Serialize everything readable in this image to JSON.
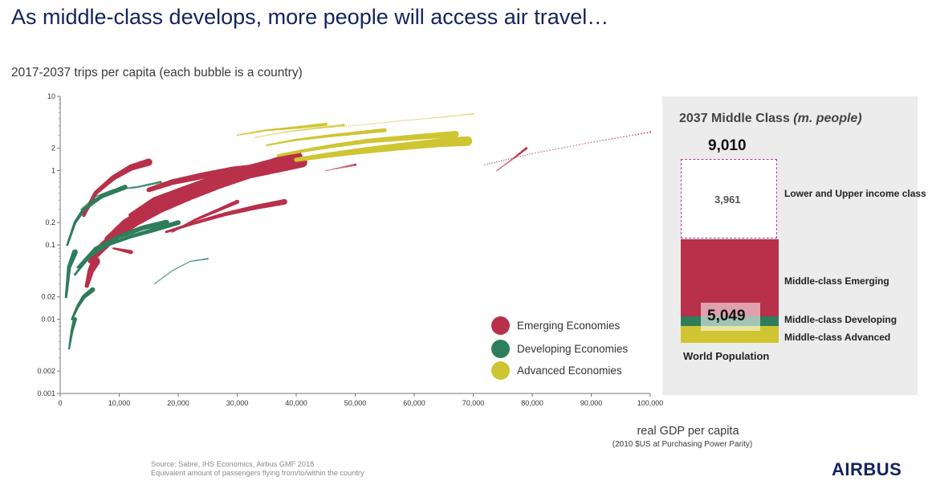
{
  "page": {
    "title": "As middle-class develops, more people will access air travel…",
    "source_line1": "Source: Sabre, IHS Economics, Airbus GMF 2018",
    "source_line2": "Equivalent amount of passengers flying from/to/within the country",
    "logo_text": "AIRBUS"
  },
  "chart_data": [
    {
      "type": "scatter",
      "title": "2017-2037 trips per capita (each bubble is a country)",
      "xlabel": "real GDP per capita",
      "xlabel_sub": "(2010 $US at Purchasing Power Parity)",
      "ylabel": "",
      "xlim": [
        0,
        100000
      ],
      "ylim": [
        0.001,
        10
      ],
      "yscale": "log",
      "x_ticks": [
        0,
        10000,
        20000,
        30000,
        40000,
        50000,
        60000,
        70000,
        80000,
        90000,
        100000
      ],
      "x_tick_labels": [
        "0",
        "10,000",
        "20,000",
        "30,000",
        "40,000",
        "50,000",
        "60,000",
        "70,000",
        "80,000",
        "90,000",
        "100,000"
      ],
      "y_ticks": [
        0.001,
        0.002,
        0.01,
        0.02,
        0.1,
        0.2,
        1,
        2,
        10
      ],
      "y_tick_labels": [
        "0.001",
        "0.002",
        "0.01",
        "0.02",
        "0.1",
        "0.2",
        "1",
        "2",
        "10"
      ],
      "grid": false,
      "legend_position": "bottom-right",
      "series": [
        {
          "name": "Emerging Economies",
          "color": "#b8304a",
          "trajectories": [
            {
              "x": [
                15000,
                19000,
                24000,
                29000,
                34000,
                37000,
                40000
              ],
              "y": [
                0.55,
                0.7,
                0.85,
                1.0,
                1.1,
                1.2,
                1.4
              ],
              "size": 13
            },
            {
              "x": [
                12000,
                16000,
                21000,
                26000,
                31000,
                36000
              ],
              "y": [
                0.25,
                0.4,
                0.55,
                0.75,
                0.95,
                1.2
              ],
              "size": 14
            },
            {
              "x": [
                10000,
                14000,
                18000,
                23000,
                28000,
                33000,
                38000
              ],
              "y": [
                0.15,
                0.25,
                0.38,
                0.55,
                0.8,
                1.0,
                1.3
              ],
              "size": 15
            },
            {
              "x": [
                8000,
                11000,
                15000,
                19000,
                24000,
                28000,
                32000,
                36000,
                40000
              ],
              "y": [
                0.12,
                0.2,
                0.3,
                0.45,
                0.6,
                0.8,
                1.0,
                1.2,
                1.5
              ],
              "size": 16
            },
            {
              "x": [
                6000,
                9000,
                13000,
                17000,
                22000,
                27000,
                32000,
                37000,
                41000
              ],
              "y": [
                0.07,
                0.12,
                0.2,
                0.3,
                0.45,
                0.65,
                0.9,
                1.1,
                1.3
              ],
              "size": 13
            },
            {
              "x": [
                5000,
                7000,
                10000,
                14000,
                18000,
                22000,
                26000
              ],
              "y": [
                0.06,
                0.1,
                0.16,
                0.25,
                0.35,
                0.5,
                0.65
              ],
              "size": 10
            },
            {
              "x": [
                4500,
                5200,
                6000
              ],
              "y": [
                0.028,
                0.045,
                0.06
              ],
              "size": 11
            },
            {
              "x": [
                4000,
                6000,
                9000,
                12000,
                15000
              ],
              "y": [
                0.25,
                0.5,
                0.8,
                1.1,
                1.3
              ],
              "size": 9
            },
            {
              "x": [
                18000,
                23000,
                28000,
                33000,
                38000
              ],
              "y": [
                0.15,
                0.2,
                0.26,
                0.32,
                0.38
              ],
              "size": 7
            },
            {
              "x": [
                19000,
                23000,
                27000,
                30000
              ],
              "y": [
                0.15,
                0.22,
                0.3,
                0.38
              ],
              "size": 5
            },
            {
              "x": [
                9000,
                12000
              ],
              "y": [
                0.09,
                0.08
              ],
              "size": 5
            },
            {
              "x": [
                72000,
                80000,
                90000,
                100000
              ],
              "y": [
                1.2,
                1.7,
                2.4,
                3.3
              ],
              "size": 2
            },
            {
              "x": [
                74000,
                77000,
                79000
              ],
              "y": [
                1.0,
                1.5,
                2.0
              ],
              "size": 3
            },
            {
              "x": [
                45000,
                50000
              ],
              "y": [
                1.0,
                1.2
              ],
              "size": 3
            }
          ]
        },
        {
          "name": "Developing Economies",
          "color": "#2e7d5b",
          "trajectories": [
            {
              "x": [
                3000,
                6000,
                10000,
                14000,
                18000
              ],
              "y": [
                0.05,
                0.09,
                0.13,
                0.17,
                0.2
              ],
              "size": 7
            },
            {
              "x": [
                2500,
                5000,
                8000,
                12000,
                16000,
                20000
              ],
              "y": [
                0.04,
                0.07,
                0.1,
                0.13,
                0.16,
                0.2
              ],
              "size": 6
            },
            {
              "x": [
                2000,
                3000,
                4000,
                5500
              ],
              "y": [
                0.01,
                0.015,
                0.02,
                0.025
              ],
              "size": 6
            },
            {
              "x": [
                1500,
                2000,
                2500
              ],
              "y": [
                0.004,
                0.007,
                0.01
              ],
              "size": 5
            },
            {
              "x": [
                1200,
                2500,
                4000,
                7000,
                11000
              ],
              "y": [
                0.1,
                0.2,
                0.3,
                0.45,
                0.6
              ],
              "size": 6
            },
            {
              "x": [
                1000,
                1500,
                2500
              ],
              "y": [
                0.02,
                0.05,
                0.08
              ],
              "size": 7
            },
            {
              "x": [
                3500,
                6000,
                9000,
                13000,
                17000
              ],
              "y": [
                0.3,
                0.45,
                0.55,
                0.6,
                0.7
              ],
              "size": 3
            },
            {
              "x": [
                16000,
                19000,
                22000,
                25000
              ],
              "y": [
                0.03,
                0.045,
                0.06,
                0.065
              ],
              "size": 2
            }
          ]
        },
        {
          "name": "Advanced Economies",
          "color": "#cfc532",
          "trajectories": [
            {
              "x": [
                40000,
                45000,
                50000,
                55000,
                60000,
                65000,
                69000
              ],
              "y": [
                1.4,
                1.6,
                1.8,
                2.0,
                2.2,
                2.4,
                2.5
              ],
              "size": 12
            },
            {
              "x": [
                37000,
                42000,
                47000,
                52000,
                57000,
                62000,
                67000
              ],
              "y": [
                1.6,
                1.9,
                2.2,
                2.5,
                2.7,
                2.9,
                3.1
              ],
              "size": 8
            },
            {
              "x": [
                35000,
                40000,
                45000,
                50000,
                55000
              ],
              "y": [
                2.2,
                2.6,
                2.9,
                3.2,
                3.5
              ],
              "size": 5
            },
            {
              "x": [
                30000,
                35000,
                40000,
                45000
              ],
              "y": [
                3.0,
                3.5,
                3.8,
                4.2
              ],
              "size": 4
            },
            {
              "x": [
                45000,
                52000,
                58000,
                64000,
                70000
              ],
              "y": [
                3.8,
                4.2,
                4.7,
                5.2,
                5.8
              ],
              "size": 2
            },
            {
              "x": [
                33000,
                38000,
                43000,
                48000
              ],
              "y": [
                2.8,
                3.3,
                3.7,
                4.1
              ],
              "size": 3
            }
          ]
        }
      ]
    },
    {
      "type": "bar",
      "title": "2037 Middle Class",
      "title_unit": "(m. people)",
      "total_label": "9,010",
      "middle_total_label": "5,049",
      "base_label": "World Population",
      "stack_total": 9010,
      "segments": [
        {
          "label": "Middle-class Advanced",
          "value": 540,
          "color": "#cfc532"
        },
        {
          "label": "Middle-class Developing",
          "value": 310,
          "color": "#2e7d5b"
        },
        {
          "label": "Middle-class Emerging",
          "value": 4199,
          "color": "#b8304a"
        },
        {
          "label": "Lower and Upper income class",
          "value": 3961,
          "value_label": "3,961",
          "color": "#ffffff"
        }
      ]
    }
  ]
}
